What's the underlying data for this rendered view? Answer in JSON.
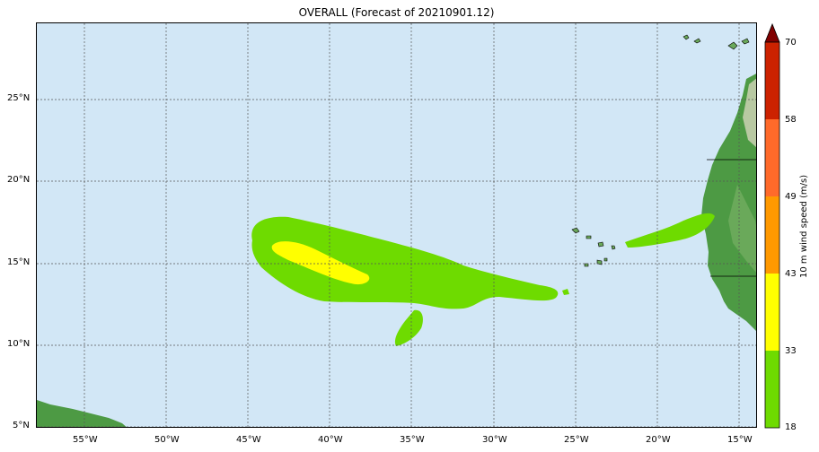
{
  "title": "OVERALL (Forecast of 20210901.12)",
  "colors": {
    "ocean": "#d2e7f6",
    "grid": "#555555",
    "land_dark": "#3e8a3e",
    "land_light": "#7fbf6a",
    "land_desert": "#b9c9a0",
    "green": "#6edb00",
    "yellow": "#ffff00",
    "orange": "#ff9900",
    "orange_red": "#ff6a2a",
    "red": "#cc2200",
    "dark_red": "#800000"
  },
  "map": {
    "lon_ticks": [
      "55°W",
      "50°W",
      "45°W",
      "40°W",
      "35°W",
      "30°W",
      "25°W",
      "20°W",
      "15°W"
    ],
    "lat_ticks": [
      "25°N",
      "20°N",
      "15°N",
      "10°N",
      "5°N"
    ]
  },
  "colorbar": {
    "title": "10 m wind speed (m/s)",
    "levels": [
      "18",
      "33",
      "43",
      "49",
      "58",
      "70"
    ],
    "colors": [
      "#6edb00",
      "#ffff00",
      "#ff9900",
      "#ff6a2a",
      "#cc2200"
    ],
    "extend_color": "#800000"
  }
}
